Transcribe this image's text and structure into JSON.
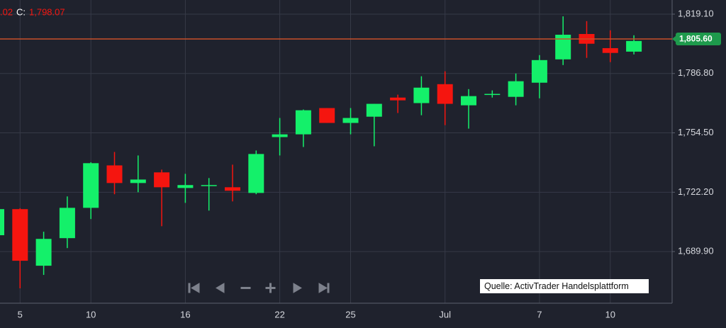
{
  "chart_data": {
    "type": "candlestick",
    "header": {
      "prefix": ".02",
      "close_label": "C:",
      "close_value": "1,798.07"
    },
    "source": "Quelle: ActivTrader Handelsplattform",
    "categories": [
      null,
      "5",
      null,
      null,
      "10",
      null,
      null,
      null,
      "16",
      null,
      null,
      null,
      "22",
      null,
      null,
      "25",
      null,
      null,
      null,
      "Jul",
      null,
      null,
      null,
      "7",
      null,
      null,
      "10",
      null
    ],
    "series": {
      "up_color": "#14f06a",
      "down_color": "#f5150f",
      "open": [
        1698.8,
        1713.0,
        1682.2,
        1697.2,
        1713.7,
        1736.8,
        1727.2,
        1733.0,
        1724.5,
        1725.7,
        1724.9,
        1721.8,
        1752.2,
        1753.7,
        1768.0,
        1759.9,
        1763.3,
        1773.7,
        1770.7,
        1781.0,
        1769.5,
        1775.3,
        1774.1,
        1781.8,
        1794.5,
        1808.3,
        1800.6,
        1798.7
      ],
      "high": [
        1714.0,
        1713.5,
        1700.7,
        1719.9,
        1738.5,
        1744.1,
        1742.2,
        1734.5,
        1732.2,
        1729.9,
        1737.2,
        1744.9,
        1762.6,
        1767.2,
        1768.0,
        1768.0,
        1770.3,
        1775.3,
        1785.3,
        1788.0,
        1778.3,
        1777.6,
        1786.8,
        1796.8,
        1817.9,
        1815.3,
        1810.3,
        1807.6
      ],
      "low": [
        1697.0,
        1669.9,
        1677.2,
        1691.8,
        1707.6,
        1721.1,
        1722.2,
        1703.7,
        1716.4,
        1712.2,
        1717.2,
        1721.1,
        1742.2,
        1746.8,
        1759.9,
        1753.7,
        1747.2,
        1765.3,
        1764.1,
        1758.7,
        1756.8,
        1773.7,
        1769.5,
        1773.3,
        1791.4,
        1795.3,
        1793.0,
        1797.2
      ],
      "close": [
        1713.0,
        1684.9,
        1696.8,
        1713.7,
        1738.0,
        1727.2,
        1729.1,
        1724.9,
        1726.1,
        1726.1,
        1723.0,
        1743.0,
        1753.7,
        1766.8,
        1759.9,
        1762.6,
        1770.3,
        1772.2,
        1779.1,
        1770.3,
        1774.5,
        1775.7,
        1782.6,
        1794.1,
        1807.9,
        1803.0,
        1798.0,
        1804.5
      ]
    },
    "last_price": {
      "value": 1805.6,
      "label": "1,805.60"
    },
    "last_price_line_color": "#c8502a",
    "ylim": [
      1661.8,
      1826.8
    ],
    "yticks": [
      {
        "value": 1689.9,
        "label": "1,689.90"
      },
      {
        "value": 1722.2,
        "label": "1,722.20"
      },
      {
        "value": 1754.5,
        "label": "1,754.50"
      },
      {
        "value": 1786.8,
        "label": "1,786.80"
      },
      {
        "value": 1819.1,
        "label": "1,819.10"
      }
    ],
    "grid": true
  }
}
